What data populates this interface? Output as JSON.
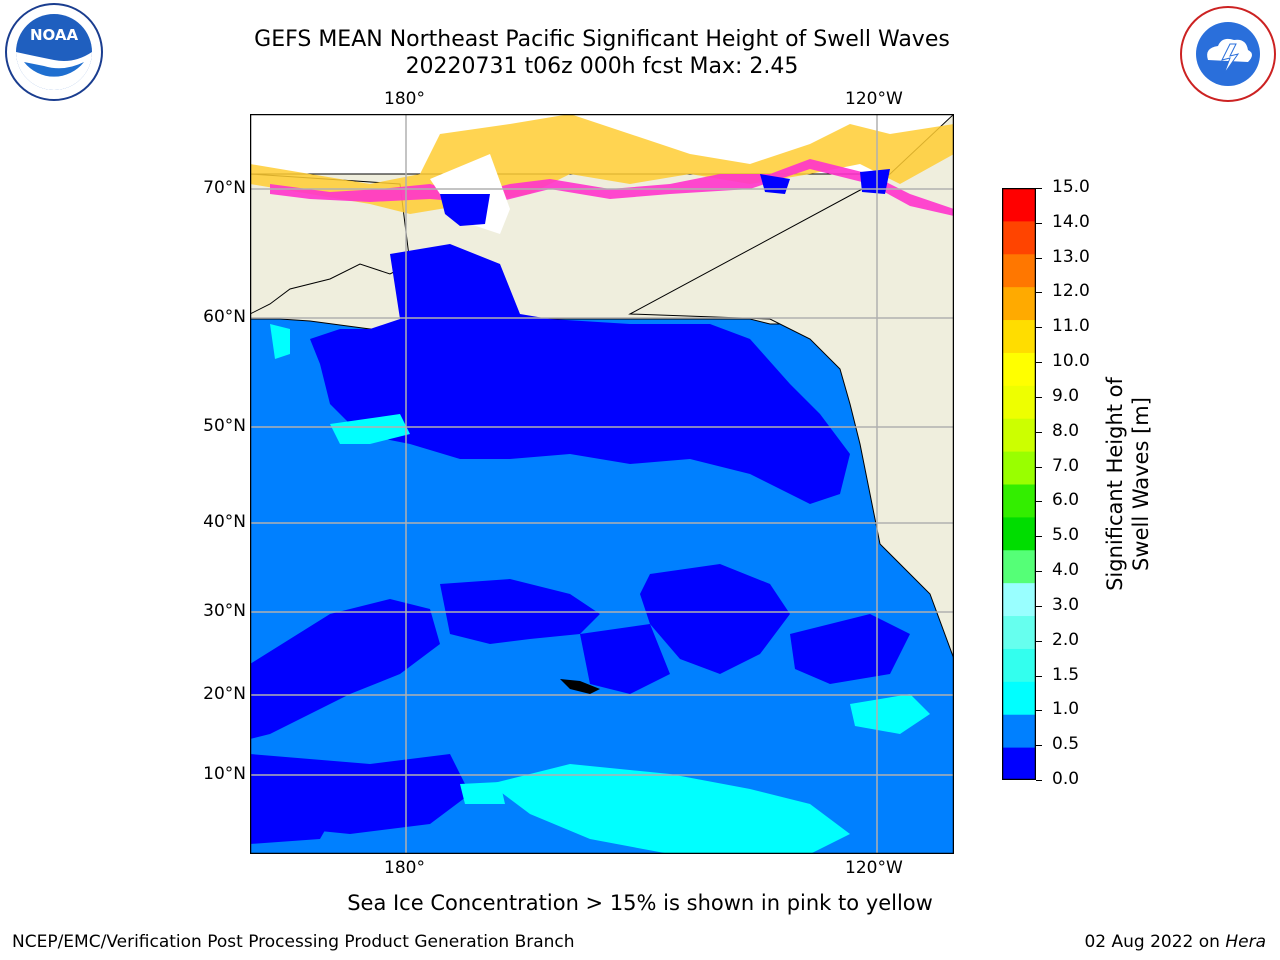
{
  "title": {
    "line1": "GEFS MEAN Northeast Pacific Significant Height of Swell Waves",
    "line2": "20220731 t06z 000h fcst   Max: 2.45"
  },
  "map": {
    "lon_labels_top": [
      "180°",
      "120°W"
    ],
    "lon_labels_bottom": [
      "180°",
      "120°W"
    ],
    "lat_labels": [
      "70°N",
      "60°N",
      "50°N",
      "40°N",
      "30°N",
      "20°N",
      "10°N"
    ],
    "colors": {
      "land": "#efeedd",
      "ocean_05_10": "#0080ff",
      "ocean_00_05": "#0000ff",
      "ocean_10_15": "#00ffff",
      "ocean_15_20": "#33ffee",
      "ice_pink": "#ff33cc",
      "ice_yellow": "#ffcc33",
      "grid": "#b0b0b0"
    }
  },
  "colorbar": {
    "title": "Significant Height of Swell Waves [m]",
    "ticks": [
      "15.0",
      "14.0",
      "13.0",
      "12.0",
      "11.0",
      "10.0",
      "9.0",
      "8.0",
      "7.0",
      "6.0",
      "5.0",
      "4.0",
      "3.0",
      "2.0",
      "1.5",
      "1.0",
      "0.5",
      "0.0"
    ],
    "bands": [
      "#0000ff",
      "#0080ff",
      "#00ffff",
      "#33ffee",
      "#66ffee",
      "#99ffff",
      "#55ff77",
      "#00dd00",
      "#33ee00",
      "#99ff00",
      "#ccff00",
      "#eeff00",
      "#ffff00",
      "#ffdd00",
      "#ffaa00",
      "#ff7700",
      "#ff4400",
      "#ff0000"
    ]
  },
  "note": "Sea Ice Concentration > 15% is shown in pink to yellow",
  "footer": {
    "left": "NCEP/EMC/Verification Post Processing Product Generation Branch",
    "right_prefix": "02 Aug 2022 on ",
    "right_host": "Hera"
  },
  "logos": {
    "left": "NOAA",
    "right": "NATIONAL WEATHER SERVICE"
  }
}
